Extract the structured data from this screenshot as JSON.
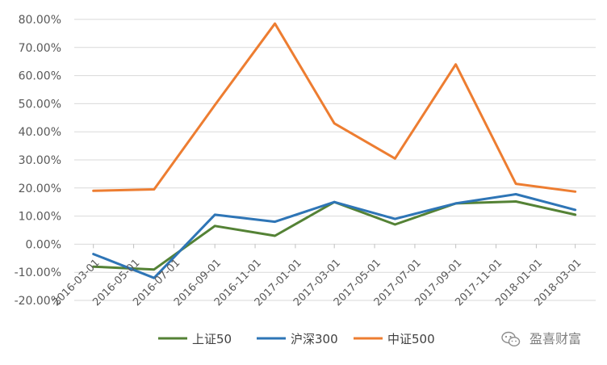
{
  "chart_data": {
    "type": "line",
    "title": "",
    "xlabel": "",
    "ylabel": "",
    "ylim": [
      -0.2,
      0.8
    ],
    "y_tick_format": "percent_2dp",
    "y_ticks": [
      "80.00%",
      "70.00%",
      "60.00%",
      "50.00%",
      "40.00%",
      "30.00%",
      "20.00%",
      "10.00%",
      "0.00%",
      "-10.00%",
      "-20.00%"
    ],
    "x_ticks": [
      "2016-03-01",
      "2016-05-01",
      "2016-07-01",
      "2016-09-01",
      "2016-11-01",
      "2017-01-01",
      "2017-03-01",
      "2017-05-01",
      "2017-07-01",
      "2017-09-01",
      "2017-11-01",
      "2018-01-01",
      "2018-03-01"
    ],
    "x": [
      "2016-03-01",
      "2016-06-01",
      "2016-09-01",
      "2016-12-01",
      "2017-03-01",
      "2017-06-01",
      "2017-09-01",
      "2017-12-01",
      "2018-03-01"
    ],
    "grid": "horizontal",
    "legend_position": "bottom",
    "series": [
      {
        "name": "上证50",
        "color": "#548235",
        "values": [
          -0.08,
          -0.09,
          0.065,
          0.03,
          0.15,
          0.07,
          0.145,
          0.152,
          0.105
        ]
      },
      {
        "name": "沪深300",
        "color": "#2E75B6",
        "values": [
          -0.035,
          -0.12,
          0.105,
          0.08,
          0.15,
          0.09,
          0.145,
          0.178,
          0.122
        ]
      },
      {
        "name": "中证500",
        "color": "#ED7D31",
        "values": [
          0.19,
          0.195,
          0.495,
          0.785,
          0.43,
          0.305,
          0.64,
          0.215,
          0.187
        ]
      }
    ]
  },
  "watermark": {
    "text": "盈喜财富",
    "icon": "wechat-icon"
  }
}
